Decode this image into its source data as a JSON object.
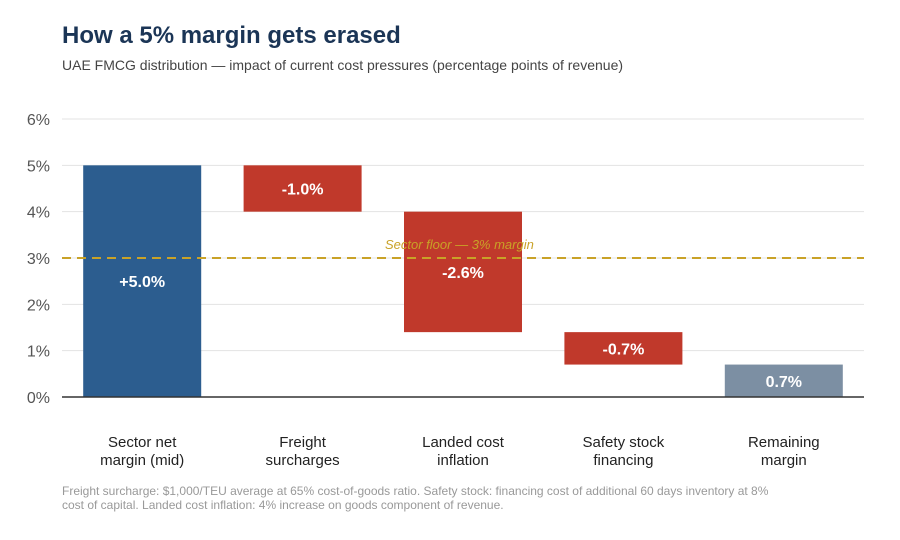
{
  "header": {
    "title": "How a 5% margin gets erased",
    "subtitle": "UAE FMCG distribution — impact of current cost pressures (percentage points of revenue)"
  },
  "footnote": "Freight surcharge: $1,000/TEU average at 65% cost-of-goods ratio.  Safety stock: financing cost of additional 60 days inventory at 8% cost of capital.  Landed cost inflation: 4% increase on goods component of revenue.",
  "chart_data": {
    "type": "bar",
    "subtype": "waterfall",
    "ylim": [
      0,
      6
    ],
    "yticks": [
      {
        "value": 0,
        "label": "0%"
      },
      {
        "value": 1,
        "label": "1%"
      },
      {
        "value": 2,
        "label": "2%"
      },
      {
        "value": 3,
        "label": "3%"
      },
      {
        "value": 4,
        "label": "4%"
      },
      {
        "value": 5,
        "label": "5%"
      },
      {
        "value": 6,
        "label": "6%"
      }
    ],
    "grid": true,
    "bars": [
      {
        "category": [
          "Sector net",
          "margin (mid)"
        ],
        "start": 0,
        "end": 5.0,
        "label": "+5.0%",
        "color": "#2c5d8f"
      },
      {
        "category": [
          "Freight",
          "surcharges"
        ],
        "start": 5.0,
        "end": 4.0,
        "label": "-1.0%",
        "color": "#c0392b"
      },
      {
        "category": [
          "Landed cost",
          "inflation"
        ],
        "start": 4.0,
        "end": 1.4,
        "label": "-2.6%",
        "color": "#c0392b"
      },
      {
        "category": [
          "Safety stock",
          "financing"
        ],
        "start": 1.4,
        "end": 0.7,
        "label": "-0.7%",
        "color": "#c0392b"
      },
      {
        "category": [
          "Remaining",
          "margin"
        ],
        "start": 0,
        "end": 0.7,
        "label": "0.7%",
        "color": "#7c8fa3"
      }
    ],
    "reference_line": {
      "value": 3,
      "label": "Sector floor — 3% margin",
      "color": "#c9a227"
    }
  }
}
